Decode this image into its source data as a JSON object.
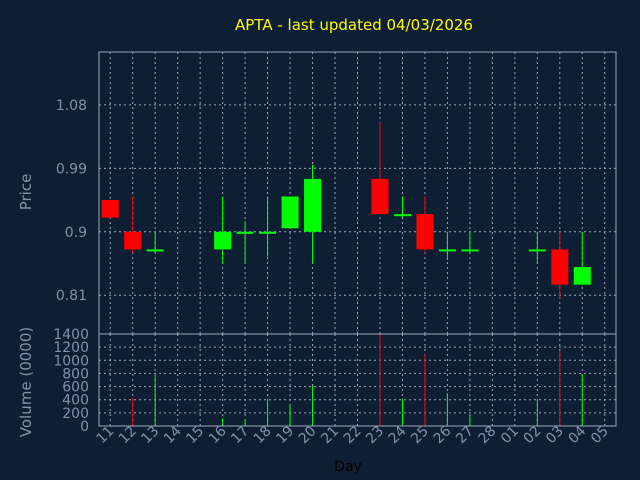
{
  "chart_data": [
    {
      "type": "candlestick",
      "title": "APTA - last updated 04/03/2026",
      "ylabel": "Price",
      "ylim": [
        0.755,
        1.155
      ],
      "yticks": [
        "1.08",
        "0.99",
        "0.9",
        "0.81"
      ],
      "ytick_values": [
        1.08,
        0.99,
        0.9,
        0.81
      ],
      "grid": true,
      "colors": {
        "up": "#00ff00",
        "down": "#ff0000",
        "title": "#ffff00",
        "axis_text": "#7f93ad",
        "background": "#0f1f33",
        "grid": "#9aa7b8"
      },
      "candles": [
        {
          "x": "11",
          "open": 0.945,
          "close": 0.92,
          "high": 0.945,
          "low": 0.92
        },
        {
          "x": "12",
          "open": 0.9,
          "close": 0.875,
          "high": 0.95,
          "low": 0.87
        },
        {
          "x": "13",
          "open": 0.875,
          "close": 0.875,
          "high": 0.9,
          "low": 0.87
        },
        {
          "x": "16",
          "open": 0.875,
          "close": 0.9,
          "high": 0.95,
          "low": 0.855
        },
        {
          "x": "17",
          "open": 0.9,
          "close": 0.9,
          "high": 0.915,
          "low": 0.855
        },
        {
          "x": "18",
          "open": 0.9,
          "close": 0.9,
          "high": 0.95,
          "low": 0.865
        },
        {
          "x": "19",
          "open": 0.905,
          "close": 0.95,
          "high": 0.95,
          "low": 0.905
        },
        {
          "x": "20",
          "open": 0.9,
          "close": 0.975,
          "high": 0.995,
          "low": 0.855
        },
        {
          "x": "23",
          "open": 0.975,
          "close": 0.925,
          "high": 1.055,
          "low": 0.925
        },
        {
          "x": "24",
          "open": 0.925,
          "close": 0.925,
          "high": 0.95,
          "low": 0.92
        },
        {
          "x": "25",
          "open": 0.925,
          "close": 0.875,
          "high": 0.95,
          "low": 0.87
        },
        {
          "x": "26",
          "open": 0.875,
          "close": 0.875,
          "high": 0.9,
          "low": 0.86
        },
        {
          "x": "27",
          "open": 0.875,
          "close": 0.875,
          "high": 0.9,
          "low": 0.87
        },
        {
          "x": "02",
          "open": 0.875,
          "close": 0.875,
          "high": 0.9,
          "low": 0.855
        },
        {
          "x": "03",
          "open": 0.875,
          "close": 0.825,
          "high": 0.9,
          "low": 0.805
        },
        {
          "x": "04",
          "open": 0.825,
          "close": 0.85,
          "high": 0.9,
          "low": 0.825
        }
      ]
    },
    {
      "type": "bar",
      "ylabel": "Volume (0000)",
      "xlabel": "Day",
      "ylim": [
        0,
        1400
      ],
      "yticks": [
        "1400",
        "1200",
        "1000",
        "800",
        "600",
        "400",
        "200",
        "0"
      ],
      "ytick_values": [
        1400,
        1200,
        1000,
        800,
        600,
        400,
        200,
        0
      ],
      "categories": [
        "11",
        "12",
        "13",
        "14",
        "15",
        "16",
        "17",
        "18",
        "19",
        "20",
        "21",
        "22",
        "23",
        "24",
        "25",
        "26",
        "27",
        "28",
        "01",
        "02",
        "03",
        "04",
        "05"
      ],
      "bars": [
        {
          "x": "12",
          "value": 430,
          "color": "#ff0000"
        },
        {
          "x": "13",
          "value": 760,
          "color": "#00ff00"
        },
        {
          "x": "16",
          "value": 120,
          "color": "#00ff00"
        },
        {
          "x": "17",
          "value": 100,
          "color": "#00ff00"
        },
        {
          "x": "18",
          "value": 380,
          "color": "#00ff00"
        },
        {
          "x": "19",
          "value": 330,
          "color": "#00ff00"
        },
        {
          "x": "20",
          "value": 610,
          "color": "#00ff00"
        },
        {
          "x": "23",
          "value": 1400,
          "color": "#ff0000"
        },
        {
          "x": "24",
          "value": 420,
          "color": "#00ff00"
        },
        {
          "x": "25",
          "value": 1090,
          "color": "#ff0000"
        },
        {
          "x": "26",
          "value": 500,
          "color": "#00ff00"
        },
        {
          "x": "27",
          "value": 160,
          "color": "#00ff00"
        },
        {
          "x": "02",
          "value": 380,
          "color": "#00ff00"
        },
        {
          "x": "03",
          "value": 1140,
          "color": "#ff0000"
        },
        {
          "x": "04",
          "value": 790,
          "color": "#00ff00"
        }
      ]
    }
  ]
}
